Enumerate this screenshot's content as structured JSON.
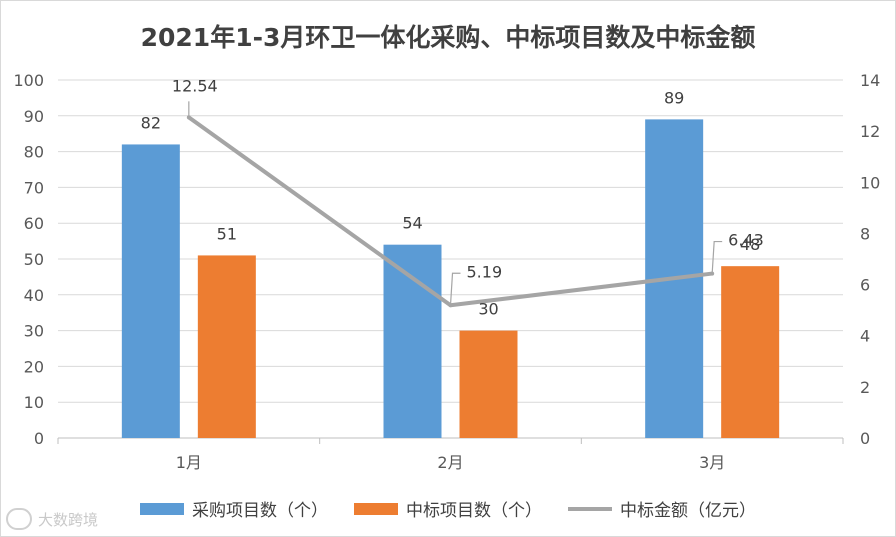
{
  "chart_data": {
    "type": "bar",
    "title": "2021年1-3月环卫一体化采购、中标项目数及中标金额",
    "categories": [
      "1月",
      "2月",
      "3月"
    ],
    "series": [
      {
        "name": "采购项目数（个）",
        "type": "bar",
        "axis": "left",
        "color": "#5b9bd5",
        "values": [
          82,
          54,
          89
        ]
      },
      {
        "name": "中标项目数（个）",
        "type": "bar",
        "axis": "left",
        "color": "#ed7d31",
        "values": [
          51,
          30,
          48
        ]
      },
      {
        "name": "中标金额（亿元）",
        "type": "line",
        "axis": "right",
        "color": "#a5a5a5",
        "values": [
          12.54,
          5.19,
          6.43
        ]
      }
    ],
    "data_labels": {
      "采购项目数（个）": [
        "82",
        "54",
        "89"
      ],
      "中标项目数（个）": [
        "51",
        "30",
        "48"
      ],
      "中标金额（亿元）": [
        "12.54",
        "5.19",
        "6.43"
      ]
    },
    "ylim": [
      0,
      100
    ],
    "yticks": [
      "0",
      "10",
      "20",
      "30",
      "40",
      "50",
      "60",
      "70",
      "80",
      "90",
      "100"
    ],
    "y2lim": [
      0,
      14
    ],
    "y2ticks": [
      "0",
      "2",
      "4",
      "6",
      "8",
      "10",
      "12",
      "14"
    ],
    "xlabel": "",
    "ylabel": "",
    "y2label": "",
    "grid": true,
    "legend_position": "bottom"
  },
  "watermark": {
    "text": "大数跨境"
  }
}
